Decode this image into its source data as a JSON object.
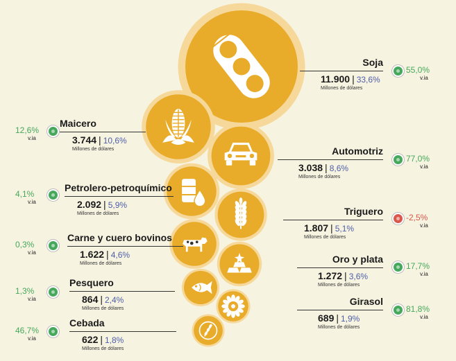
{
  "colors": {
    "bubble": "#e8ab2a",
    "bubble_ring": "#f6d99a",
    "positive": "#46a85a",
    "negative": "#d9584b",
    "share_text": "#4d5ea8",
    "background": "#f6f3e1"
  },
  "chart_data": {
    "type": "bubble",
    "value_unit": "Millones de dólares",
    "variation_label": "v.ia",
    "items": [
      {
        "name": "Soja",
        "value": "11.900",
        "value_num": 11900,
        "share": "33,6%",
        "variation": "55,0%",
        "variation_sign": "positive",
        "icon": "soybean-pod-icon"
      },
      {
        "name": "Maicero",
        "value": "3.744",
        "value_num": 3744,
        "share": "10,6%",
        "variation": "12,6%",
        "variation_sign": "positive",
        "icon": "corn-icon"
      },
      {
        "name": "Automotriz",
        "value": "3.038",
        "value_num": 3038,
        "share": "8,6%",
        "variation": "77,0%",
        "variation_sign": "positive",
        "icon": "car-icon"
      },
      {
        "name": "Petrolero-petroquímico",
        "value": "2.092",
        "value_num": 2092,
        "share": "5,9%",
        "variation": "4,1%",
        "variation_sign": "positive",
        "icon": "oil-barrel-icon"
      },
      {
        "name": "Triguero",
        "value": "1.807",
        "value_num": 1807,
        "share": "5,1%",
        "variation": "-2,5%",
        "variation_sign": "negative",
        "icon": "wheat-icon"
      },
      {
        "name": "Carne y cuero bovinos",
        "value": "1.622",
        "value_num": 1622,
        "share": "4,6%",
        "variation": "0,3%",
        "variation_sign": "positive",
        "icon": "cow-icon"
      },
      {
        "name": "Oro y plata",
        "value": "1.272",
        "value_num": 1272,
        "share": "3,6%",
        "variation": "17,7%",
        "variation_sign": "positive",
        "icon": "gold-bars-icon"
      },
      {
        "name": "Pesquero",
        "value": "864",
        "value_num": 864,
        "share": "2,4%",
        "variation": "1,3%",
        "variation_sign": "positive",
        "icon": "fish-icon"
      },
      {
        "name": "Girasol",
        "value": "689",
        "value_num": 689,
        "share": "1,9%",
        "variation": "81,8%",
        "variation_sign": "positive",
        "icon": "sunflower-icon"
      },
      {
        "name": "Cebada",
        "value": "622",
        "value_num": 622,
        "share": "1,8%",
        "variation": "46,7%",
        "variation_sign": "positive",
        "icon": "barley-icon"
      }
    ]
  }
}
